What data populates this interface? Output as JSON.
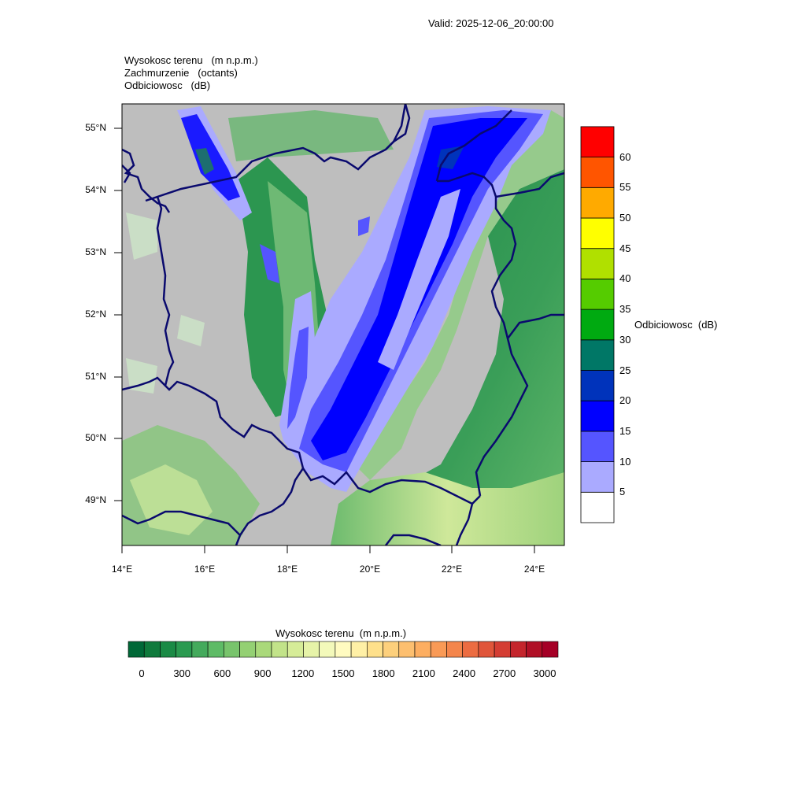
{
  "header": {
    "valid": "Valid: 2025-12-06_20:00:00",
    "fields": [
      {
        "name": "Wysokosc terenu",
        "unit": "(m n.p.m.)"
      },
      {
        "name": "Zachmurzenie",
        "unit": "(octants)"
      },
      {
        "name": "Odbiciowosc",
        "unit": "(dB)"
      }
    ]
  },
  "map": {
    "lat_ticks": [
      "55°N",
      "54°N",
      "53°N",
      "52°N",
      "51°N",
      "50°N",
      "49°N"
    ],
    "lon_ticks": [
      "14°E",
      "16°E",
      "18°E",
      "20°E",
      "22°E",
      "24°E"
    ],
    "lat_range": [
      48.25,
      55.4
    ],
    "lon_range": [
      14.0,
      24.75
    ]
  },
  "reflectivity_bar": {
    "title": "Odbiciowosc  (dB)",
    "labels": [
      "5",
      "10",
      "15",
      "20",
      "25",
      "30",
      "35",
      "40",
      "45",
      "50",
      "55",
      "60"
    ],
    "colors": [
      "#ffffff",
      "#aaaaff",
      "#5555ff",
      "#0000ff",
      "#0033bb",
      "#007766",
      "#00aa11",
      "#55cc00",
      "#b0e000",
      "#ffff00",
      "#ffaa00",
      "#ff5500",
      "#ff0000"
    ]
  },
  "terrain_bar": {
    "title": "Wysokosc terenu  (m n.p.m.)",
    "labels": [
      "0",
      "300",
      "600",
      "900",
      "1200",
      "1500",
      "1800",
      "2100",
      "2400",
      "2700",
      "3000"
    ],
    "colors": [
      "#006837",
      "#0f7a3c",
      "#1a8a45",
      "#2a9a50",
      "#44aa5c",
      "#5ebb66",
      "#78c46c",
      "#94d073",
      "#aad97a",
      "#c2e389",
      "#d6ec98",
      "#e6f3a8",
      "#f3f9ba",
      "#fffbc0",
      "#fff0a6",
      "#fee08b",
      "#fdd07c",
      "#fdbf6f",
      "#fdae61",
      "#f99a56",
      "#f4854b",
      "#ec6c41",
      "#e0553a",
      "#d43d33",
      "#c4252c",
      "#b01026",
      "#a50026"
    ]
  },
  "colors": {
    "land_gray": "#bebebe",
    "border": "#0a0a6e"
  }
}
